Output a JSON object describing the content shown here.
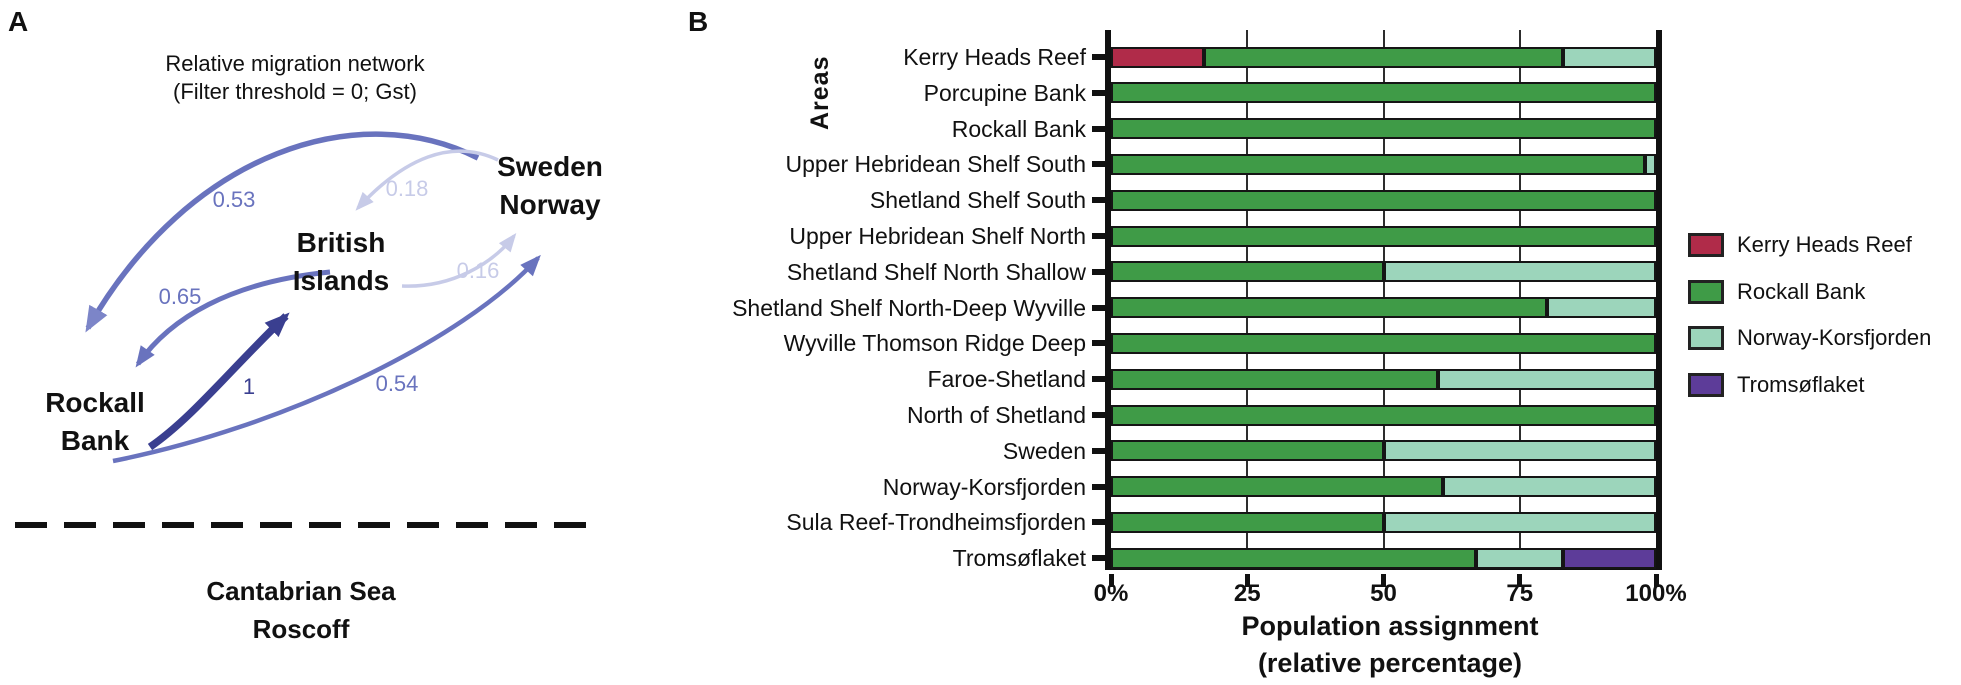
{
  "panel_a": {
    "label": "A",
    "title_line1": "Relative migration network",
    "title_line2": "(Filter threshold = 0; Gst)",
    "nodes": [
      {
        "id": "sweden-norway",
        "line1": "Sweden",
        "line2": "Norway"
      },
      {
        "id": "british-islands",
        "line1": "British",
        "line2": "Islands"
      },
      {
        "id": "rockall-bank",
        "line1": "Rockall",
        "line2": "Bank"
      }
    ],
    "edges": [
      {
        "from": "Sweden Norway",
        "to": "Rockall Bank",
        "label": "0.53",
        "strength": "medium"
      },
      {
        "from": "Sweden Norway",
        "to": "British Islands",
        "label": "0.18",
        "strength": "light"
      },
      {
        "from": "British Islands",
        "to": "Sweden Norway",
        "label": "0.16",
        "strength": "light"
      },
      {
        "from": "British Islands",
        "to": "Rockall Bank",
        "label": "0.65",
        "strength": "medium"
      },
      {
        "from": "Rockall Bank",
        "to": "British Islands",
        "label": "1",
        "strength": "strong"
      },
      {
        "from": "Rockall Bank",
        "to": "Sweden Norway",
        "label": "0.54",
        "strength": "medium"
      }
    ],
    "edge_colors": {
      "strong": "#3A3F90",
      "medium": "#6973BE",
      "light": "#C7CBE8"
    },
    "outgroup_line1": "Cantabrian Sea",
    "outgroup_line2": "Roscoff"
  },
  "panel_b": {
    "label": "B",
    "y_axis_title": "Areas",
    "x_axis_title_line1": "Population assignment",
    "x_axis_title_line2": "(relative percentage)",
    "legend": [
      {
        "label": "Kerry Heads Reef",
        "color": "#B02B49"
      },
      {
        "label": "Rockall Bank",
        "color": "#3F9B47"
      },
      {
        "label": "Norway-Korsfjorden",
        "color": "#9CD5BB"
      },
      {
        "label": "Tromsøflaket",
        "color": "#5D3C99"
      }
    ]
  },
  "chart_data": {
    "type": "bar",
    "orientation": "horizontal",
    "stacked": true,
    "xlabel": "Population assignment (relative percentage)",
    "ylabel": "Areas",
    "xlim": [
      0,
      100
    ],
    "x_tick_labels": [
      "0%",
      "25",
      "50",
      "75",
      "100%"
    ],
    "x_tick_values": [
      0,
      25,
      50,
      75,
      100
    ],
    "grid": "vertical",
    "legend_position": "right",
    "group_colors": {
      "Kerry Heads Reef": "#B02B49",
      "Rockall Bank": "#3F9B47",
      "Norway-Korsfjorden": "#9CD5BB",
      "Tromsøflaket": "#5D3C99"
    },
    "categories": [
      "Kerry Heads Reef",
      "Porcupine Bank",
      "Rockall Bank",
      "Upper Hebridean Shelf South",
      "Shetland Shelf South",
      "Upper Hebridean Shelf North",
      "Shetland Shelf North Shallow",
      "Shetland Shelf North-Deep Wyville",
      "Wyville Thomson Ridge Deep",
      "Faroe-Shetland",
      "North of Shetland",
      "Sweden",
      "Norway-Korsfjorden",
      "Sula Reef-Trondheimsfjorden",
      "Tromsøflaket"
    ],
    "series": [
      {
        "name": "Kerry Heads Reef",
        "values": [
          17,
          0,
          0,
          0,
          0,
          0,
          0,
          0,
          0,
          0,
          0,
          0,
          0,
          0,
          0
        ]
      },
      {
        "name": "Rockall Bank",
        "values": [
          66,
          100,
          100,
          98,
          100,
          100,
          50,
          80,
          100,
          60,
          100,
          50,
          61,
          50,
          67
        ]
      },
      {
        "name": "Norway-Korsfjorden",
        "values": [
          17,
          0,
          0,
          2,
          0,
          0,
          50,
          20,
          0,
          40,
          0,
          50,
          39,
          50,
          16
        ]
      },
      {
        "name": "Tromsøflaket",
        "values": [
          0,
          0,
          0,
          0,
          0,
          0,
          0,
          0,
          0,
          0,
          0,
          0,
          0,
          0,
          17
        ]
      }
    ]
  }
}
